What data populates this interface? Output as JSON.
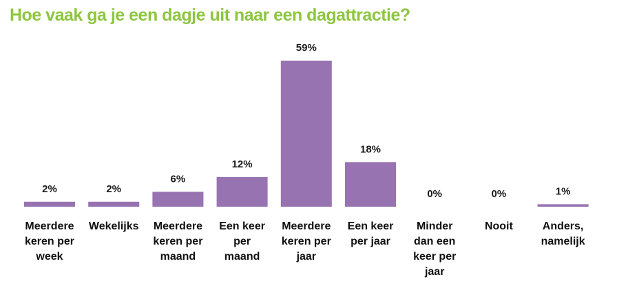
{
  "chart_data": {
    "type": "bar",
    "title": "Hoe vaak ga je een dagje uit naar een dagattractie?",
    "categories": [
      "Meerdere keren per week",
      "Wekelijks",
      "Meerdere keren per maand",
      "Een keer per maand",
      "Meerdere keren per jaar",
      "Een keer per jaar",
      "Minder dan een keer per jaar",
      "Nooit",
      "Anders, namelijk"
    ],
    "category_lines": [
      [
        "Meerdere",
        "keren per",
        "week"
      ],
      [
        "Wekelijks"
      ],
      [
        "Meerdere",
        "keren per",
        "maand"
      ],
      [
        "Een keer",
        "per",
        "maand"
      ],
      [
        "Meerdere",
        "keren per",
        "jaar"
      ],
      [
        "Een keer",
        "per jaar"
      ],
      [
        "Minder",
        "dan een",
        "keer per",
        "jaar"
      ],
      [
        "Nooit"
      ],
      [
        "Anders,",
        "namelijk"
      ]
    ],
    "values": [
      2,
      2,
      6,
      12,
      59,
      18,
      0,
      0,
      1
    ],
    "data_labels": [
      "2%",
      "2%",
      "6%",
      "12%",
      "59%",
      "18%",
      "0%",
      "0%",
      "1%"
    ],
    "unit": "%",
    "bar_color": "#9873b1",
    "title_color": "#8dc63f",
    "xlabel": "",
    "ylabel": "",
    "ylim": [
      0,
      59
    ],
    "grid": false,
    "legend": "none"
  }
}
